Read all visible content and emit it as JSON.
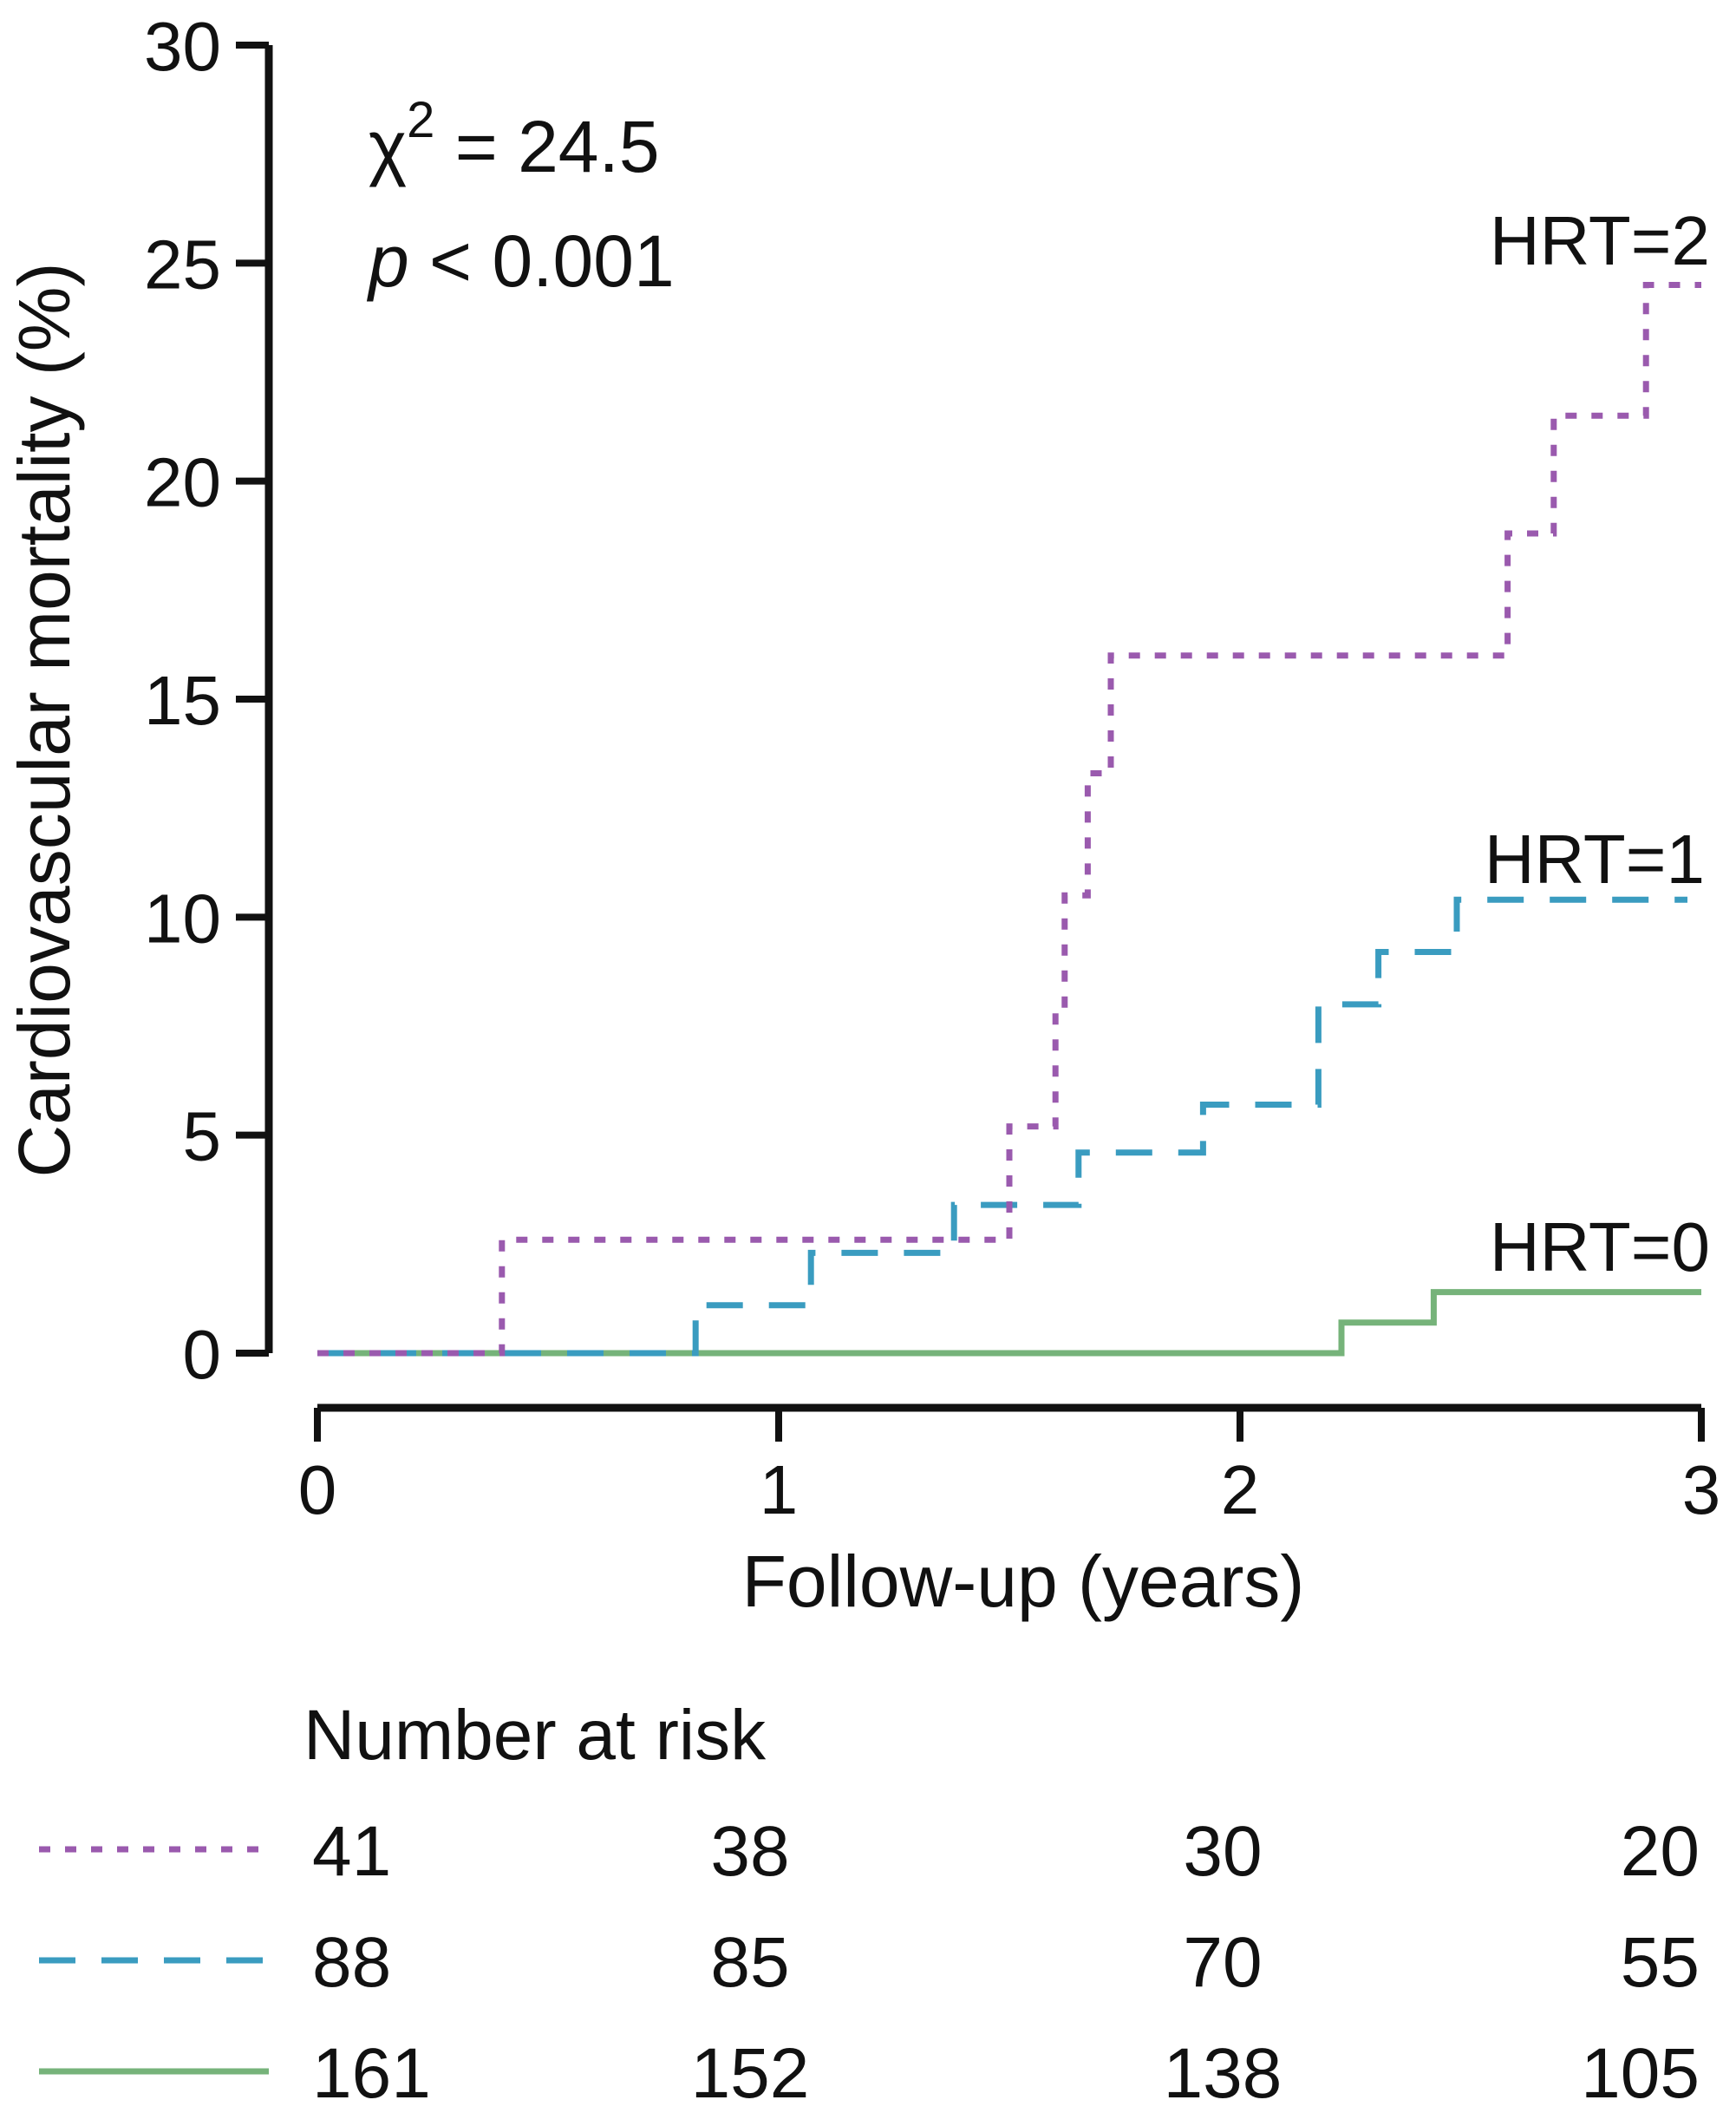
{
  "chart_data": {
    "type": "line",
    "subtype": "kaplan-meier-cumulative-incidence",
    "title": "",
    "xlabel": "Follow-up (years)",
    "ylabel": "Cardiovascular mortality (%)",
    "xlim": [
      0,
      3
    ],
    "ylim": [
      0,
      30
    ],
    "x_ticks": [
      0,
      1,
      2,
      3
    ],
    "y_ticks": [
      0,
      5,
      10,
      15,
      20,
      25,
      30
    ],
    "annotation": {
      "chi_symbol": "χ",
      "chi_exp": "2",
      "chi_value": " = 24.5",
      "p_symbol": "p",
      "p_value": " < 0.001"
    },
    "series": [
      {
        "name": "HRT=2",
        "color": "#9A5AAE",
        "dash": "dotted",
        "points": [
          [
            0,
            0
          ],
          [
            0.4,
            0
          ],
          [
            0.4,
            2.6
          ],
          [
            1.5,
            2.6
          ],
          [
            1.5,
            5.2
          ],
          [
            1.6,
            5.2
          ],
          [
            1.6,
            7.8
          ],
          [
            1.62,
            7.8
          ],
          [
            1.62,
            10.5
          ],
          [
            1.67,
            10.5
          ],
          [
            1.67,
            13.3
          ],
          [
            1.72,
            13.3
          ],
          [
            1.72,
            16.0
          ],
          [
            2.58,
            16.0
          ],
          [
            2.58,
            18.8
          ],
          [
            2.68,
            18.8
          ],
          [
            2.68,
            21.5
          ],
          [
            2.88,
            21.5
          ],
          [
            2.88,
            24.5
          ],
          [
            3.0,
            24.5
          ]
        ]
      },
      {
        "name": "HRT=1",
        "color": "#3A9CC0",
        "dash": "dashed",
        "points": [
          [
            0,
            0
          ],
          [
            0.82,
            0
          ],
          [
            0.82,
            1.1
          ],
          [
            1.07,
            1.1
          ],
          [
            1.07,
            2.3
          ],
          [
            1.38,
            2.3
          ],
          [
            1.38,
            3.4
          ],
          [
            1.65,
            3.4
          ],
          [
            1.65,
            4.6
          ],
          [
            1.92,
            4.6
          ],
          [
            1.92,
            5.7
          ],
          [
            2.17,
            5.7
          ],
          [
            2.17,
            8.0
          ],
          [
            2.3,
            8.0
          ],
          [
            2.3,
            9.2
          ],
          [
            2.47,
            9.2
          ],
          [
            2.47,
            10.4
          ],
          [
            2.97,
            10.4
          ]
        ]
      },
      {
        "name": "HRT=0",
        "color": "#76B37A",
        "dash": "solid",
        "points": [
          [
            0,
            0
          ],
          [
            2.22,
            0
          ],
          [
            2.22,
            0.7
          ],
          [
            2.42,
            0.7
          ],
          [
            2.42,
            1.4
          ],
          [
            3.0,
            1.4
          ]
        ]
      }
    ],
    "risk_table": {
      "title": "Number at risk",
      "rows": [
        {
          "series": "HRT=2",
          "values": [
            "41",
            "38",
            "30",
            "20"
          ]
        },
        {
          "series": "HRT=1",
          "values": [
            "88",
            "85",
            "70",
            "55"
          ]
        },
        {
          "series": "HRT=0",
          "values": [
            "161",
            "152",
            "138",
            "105"
          ]
        }
      ]
    }
  }
}
